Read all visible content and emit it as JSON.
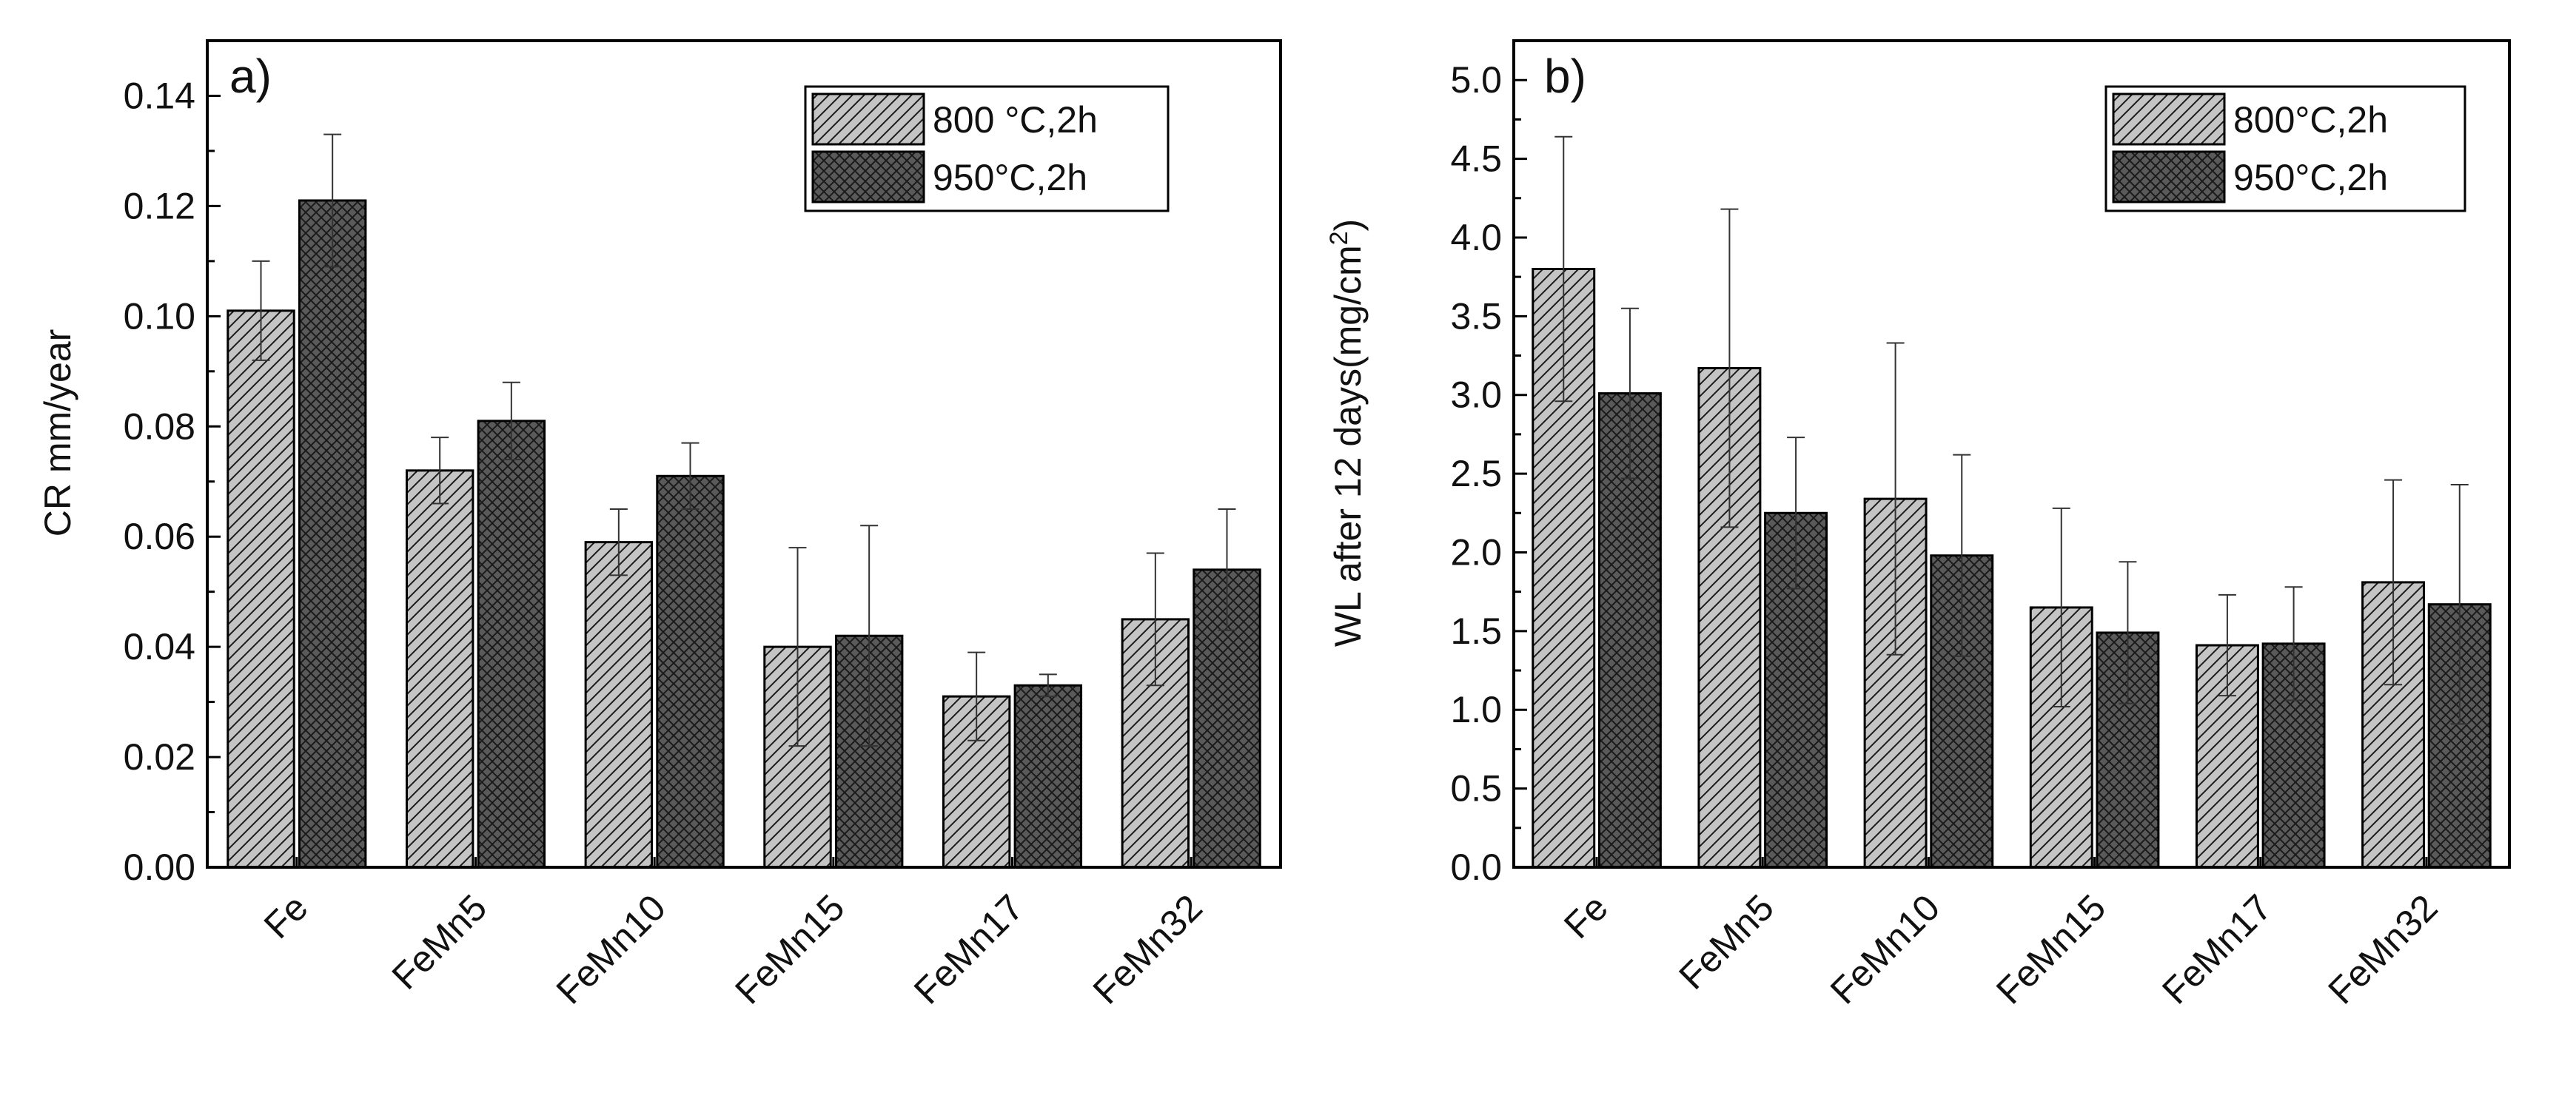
{
  "colors": {
    "series1_fill": "#c4c4c4",
    "series2_fill": "#5a5a5a",
    "hatch": "#1a1a1a"
  },
  "chart_data": [
    {
      "type": "bar",
      "panel_label": "a)",
      "categories": [
        "Fe",
        "FeMn5",
        "FeMn10",
        "FeMn15",
        "FeMn17",
        "FeMn32"
      ],
      "series": [
        {
          "name": "800 °C,2h",
          "values": [
            0.101,
            0.072,
            0.059,
            0.04,
            0.031,
            0.045
          ],
          "errors": [
            0.009,
            0.006,
            0.006,
            0.018,
            0.008,
            0.012
          ],
          "pattern": "diagonal"
        },
        {
          "name": "950°C,2h",
          "values": [
            0.121,
            0.081,
            0.071,
            0.042,
            0.033,
            0.054
          ],
          "errors": [
            0.012,
            0.007,
            0.006,
            0.02,
            0.002,
            0.011
          ],
          "pattern": "crosshatch"
        }
      ],
      "xlabel": "",
      "ylabel": "CR mm/year",
      "ylim": [
        0,
        0.15
      ],
      "yticks": [
        "0.00",
        "0.02",
        "0.04",
        "0.06",
        "0.08",
        "0.10",
        "0.12",
        "0.14"
      ],
      "ytick_values": [
        0,
        0.02,
        0.04,
        0.06,
        0.08,
        0.1,
        0.12,
        0.14
      ],
      "grid": false,
      "legend_position": "top-right"
    },
    {
      "type": "bar",
      "panel_label": "b)",
      "categories": [
        "Fe",
        "FeMn5",
        "FeMn10",
        "FeMn15",
        "FeMn17",
        "FeMn32"
      ],
      "series": [
        {
          "name": "800°C,2h",
          "values": [
            3.8,
            3.17,
            2.34,
            1.65,
            1.41,
            1.81
          ],
          "errors": [
            0.84,
            1.01,
            0.99,
            0.63,
            0.32,
            0.65
          ],
          "pattern": "diagonal"
        },
        {
          "name": "950°C,2h",
          "values": [
            3.01,
            2.25,
            1.98,
            1.49,
            1.42,
            1.67
          ],
          "errors": [
            0.54,
            0.48,
            0.64,
            0.45,
            0.36,
            0.76
          ],
          "pattern": "crosshatch"
        }
      ],
      "xlabel": "",
      "ylabel": "WL after 12 days(mg/cm",
      "ylabel_superscript": "2",
      "ylabel_suffix": ")",
      "ylim": [
        0,
        5.25
      ],
      "yticks": [
        "0.0",
        "0.5",
        "1.0",
        "1.5",
        "2.0",
        "2.5",
        "3.0",
        "3.5",
        "4.0",
        "4.5",
        "5.0"
      ],
      "ytick_values": [
        0,
        0.5,
        1.0,
        1.5,
        2.0,
        2.5,
        3.0,
        3.5,
        4.0,
        4.5,
        5.0
      ],
      "grid": false,
      "legend_position": "top-right"
    }
  ]
}
